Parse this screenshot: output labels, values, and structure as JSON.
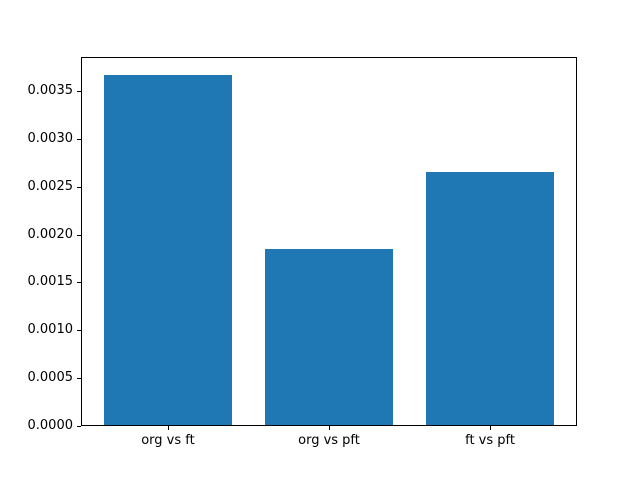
{
  "figure": {
    "background_color": "#ffffff",
    "bar_color": "#1f77b4",
    "spine_color": "#000000",
    "text_color": "#000000"
  },
  "chart_data": {
    "type": "bar",
    "categories": [
      "org vs ft",
      "org vs pft",
      "ft vs pft"
    ],
    "values": [
      0.00367,
      0.00185,
      0.00266
    ],
    "title": "",
    "xlabel": "",
    "ylabel": "",
    "xlim": [
      -0.54,
      2.54
    ],
    "ylim": [
      0,
      0.003857
    ],
    "bar_width": 0.8,
    "y_ticks": [
      0.0,
      0.0005,
      0.001,
      0.0015,
      0.002,
      0.0025,
      0.003,
      0.0035
    ],
    "y_tick_labels": [
      "0.0000",
      "0.0005",
      "0.0010",
      "0.0015",
      "0.0020",
      "0.0025",
      "0.0030",
      "0.0035"
    ],
    "grid": false,
    "legend": null
  }
}
